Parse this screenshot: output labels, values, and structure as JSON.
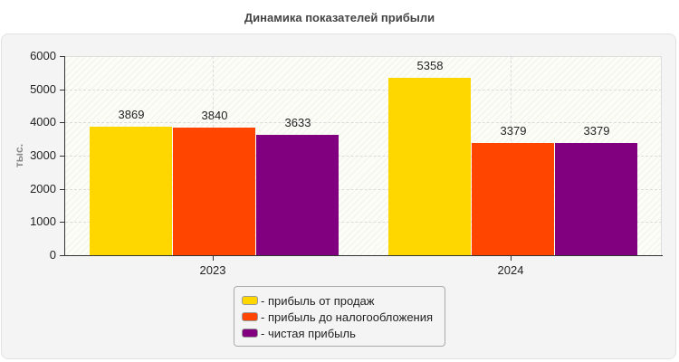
{
  "chart_data": {
    "type": "bar",
    "title": "Динамика показателей прибыли",
    "xlabel": "",
    "ylabel": "тыс.",
    "categories": [
      "2023",
      "2024"
    ],
    "series": [
      {
        "name": "прибыль от продаж",
        "color": "#FFD700",
        "values": [
          3869,
          5358
        ]
      },
      {
        "name": "прибыль до налогообложения",
        "color": "#FF4500",
        "values": [
          3840,
          3379
        ]
      },
      {
        "name": "чистая прибыль",
        "color": "#800080",
        "values": [
          3633,
          3379
        ]
      }
    ],
    "ylim": [
      0,
      6000
    ],
    "yticks": [
      0,
      1000,
      2000,
      3000,
      4000,
      5000,
      6000
    ],
    "grid": true,
    "legend_position": "bottom",
    "data_labels": true
  },
  "legend": {
    "items": [
      {
        "label": "- прибыль от продаж",
        "color": "#FFD700"
      },
      {
        "label": "- прибыль до налогообложения",
        "color": "#FF4500"
      },
      {
        "label": "- чистая прибыль",
        "color": "#800080"
      }
    ]
  }
}
